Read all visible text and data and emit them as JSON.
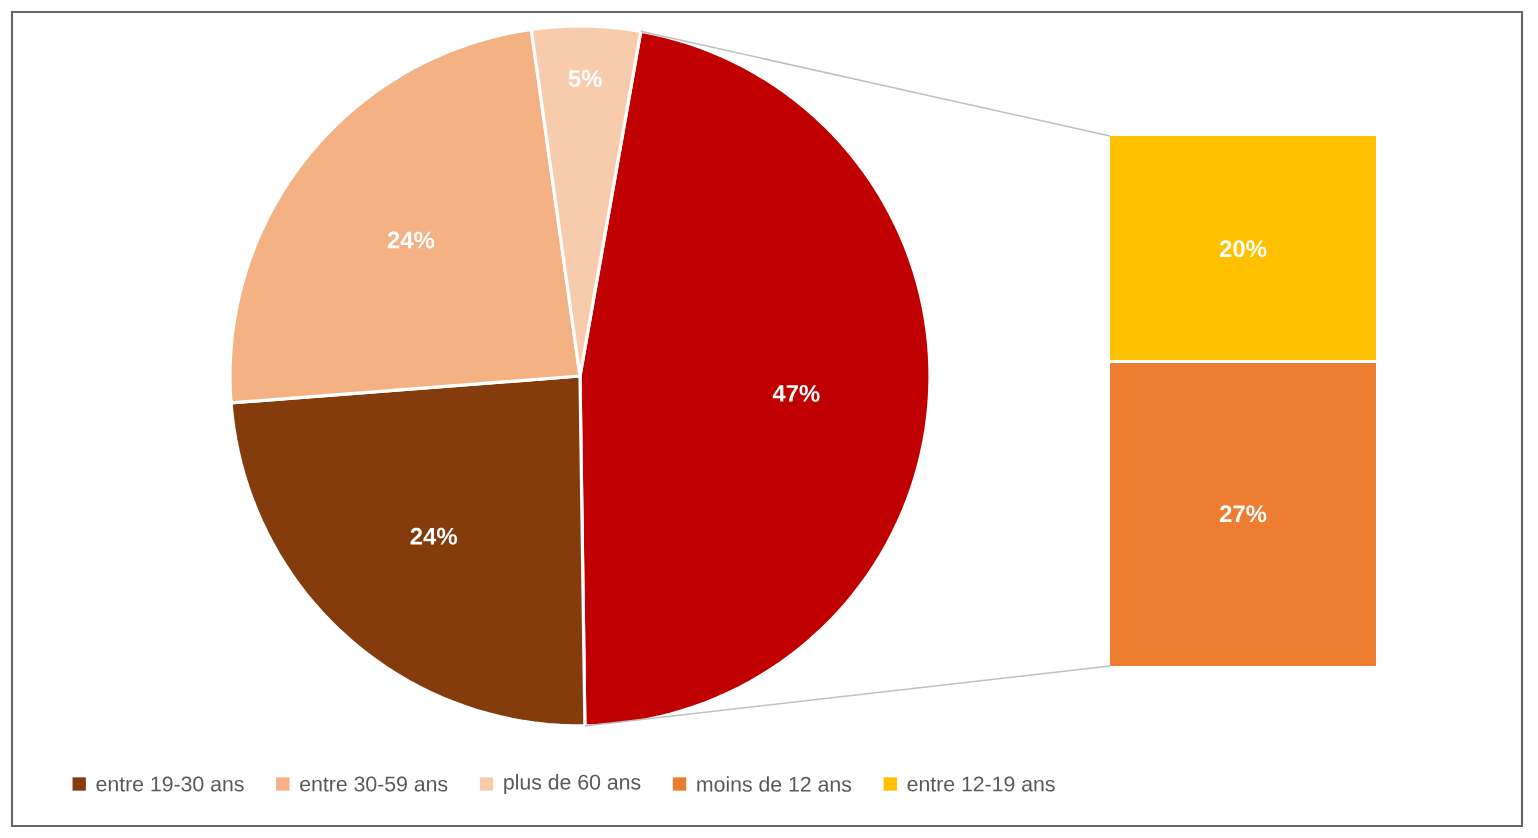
{
  "chart_data": [
    {
      "type": "pie",
      "categories": [
        null,
        "entre 19-30 ans",
        "entre 30-59 ans",
        "plus de 60 ans"
      ],
      "values": [
        47,
        24,
        24,
        5
      ],
      "colors": [
        "#c00000",
        "#843c0c",
        "#f4b183",
        "#f8cbad"
      ],
      "value_labels": [
        "47%",
        "24%",
        "24%",
        "5%"
      ],
      "legend": "bottom"
    },
    {
      "type": "bar",
      "stacked": true,
      "categories": [
        null
      ],
      "legend": "bottom",
      "series": [
        {
          "name": "moins de 12 ans",
          "color": "#ed7d31",
          "values": [
            27
          ],
          "value_labels": [
            "27%"
          ]
        },
        {
          "name": "entre 12-19 ans",
          "color": "#ffc000",
          "values": [
            20
          ],
          "value_labels": [
            "20%"
          ]
        }
      ]
    }
  ]
}
